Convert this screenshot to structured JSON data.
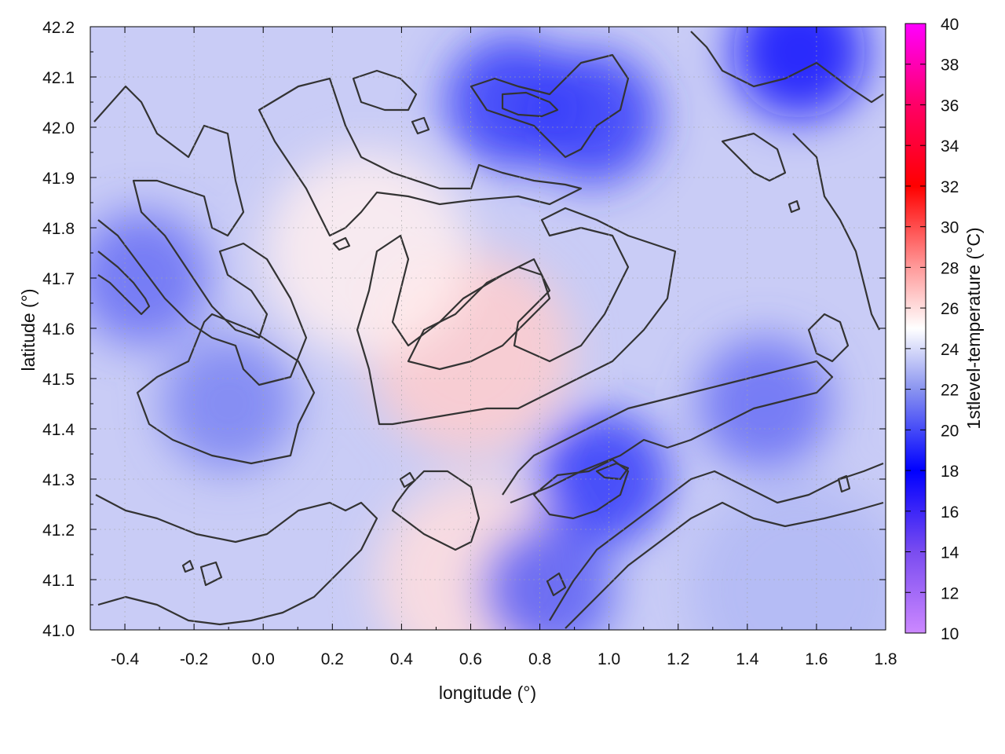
{
  "chart_data": {
    "type": "heatmap",
    "title": "",
    "xlabel": "longitude (°)",
    "ylabel": "latitude (°)",
    "xlim": [
      -0.5,
      1.8
    ],
    "ylim": [
      41.0,
      42.2
    ],
    "x_ticks": [
      "-0.4",
      "-0.2",
      "0.0",
      "0.2",
      "0.4",
      "0.6",
      "0.8",
      "1.0",
      "1.2",
      "1.4",
      "1.6",
      "1.8"
    ],
    "x_tick_values": [
      -0.4,
      -0.2,
      0.0,
      0.2,
      0.4,
      0.6,
      0.8,
      1.0,
      1.2,
      1.4,
      1.6,
      1.8
    ],
    "y_ticks": [
      "41.0",
      "41.1",
      "41.2",
      "41.3",
      "41.4",
      "41.5",
      "41.6",
      "41.7",
      "41.8",
      "41.9",
      "42.0",
      "42.1",
      "42.2"
    ],
    "y_tick_values": [
      41.0,
      41.1,
      41.2,
      41.3,
      41.4,
      41.5,
      41.6,
      41.7,
      41.8,
      41.9,
      42.0,
      42.1,
      42.2
    ],
    "grid": true,
    "colorbar": {
      "label": "1stlevel-temperature (°C)",
      "range": [
        10,
        40
      ],
      "ticks": [
        "10",
        "12",
        "14",
        "16",
        "18",
        "20",
        "22",
        "24",
        "26",
        "28",
        "30",
        "32",
        "34",
        "36",
        "38",
        "40"
      ],
      "tick_values": [
        10,
        12,
        14,
        16,
        18,
        20,
        22,
        24,
        26,
        28,
        30,
        32,
        34,
        36,
        38,
        40
      ],
      "color_stops": [
        {
          "value": 10,
          "color": "#cc88ff"
        },
        {
          "value": 14,
          "color": "#7a4cf0"
        },
        {
          "value": 18,
          "color": "#0000ff"
        },
        {
          "value": 22,
          "color": "#8a94f0"
        },
        {
          "value": 25,
          "color": "#ffffff"
        },
        {
          "value": 28,
          "color": "#ff9a9a"
        },
        {
          "value": 32,
          "color": "#ff0000"
        },
        {
          "value": 36,
          "color": "#ff0066"
        },
        {
          "value": 40,
          "color": "#ff00ff"
        }
      ]
    },
    "contour_color": "#333333",
    "field_features": [
      {
        "kind": "warm",
        "lon": 0.6,
        "lat": 41.55,
        "value": 26.5
      },
      {
        "kind": "warm",
        "lon": 0.3,
        "lat": 41.75,
        "value": 25.5
      },
      {
        "kind": "warm",
        "lon": 0.62,
        "lat": 41.1,
        "value": 26.0
      },
      {
        "kind": "cool",
        "lon": -0.35,
        "lat": 41.7,
        "value": 21.0
      },
      {
        "kind": "cool",
        "lon": -0.1,
        "lat": 41.45,
        "value": 21.5
      },
      {
        "kind": "cool",
        "lon": 0.72,
        "lat": 42.05,
        "value": 19.5
      },
      {
        "kind": "cool",
        "lon": 0.95,
        "lat": 42.02,
        "value": 19.5
      },
      {
        "kind": "cool",
        "lon": 1.55,
        "lat": 42.15,
        "value": 18.5
      },
      {
        "kind": "cool",
        "lon": 0.98,
        "lat": 41.3,
        "value": 19.5
      },
      {
        "kind": "cool",
        "lon": 1.45,
        "lat": 41.45,
        "value": 21.0
      },
      {
        "kind": "cool",
        "lon": 0.82,
        "lat": 41.08,
        "value": 20.5
      },
      {
        "kind": "sea",
        "lon": 1.55,
        "lat": 41.08,
        "value": 23.0
      }
    ]
  }
}
